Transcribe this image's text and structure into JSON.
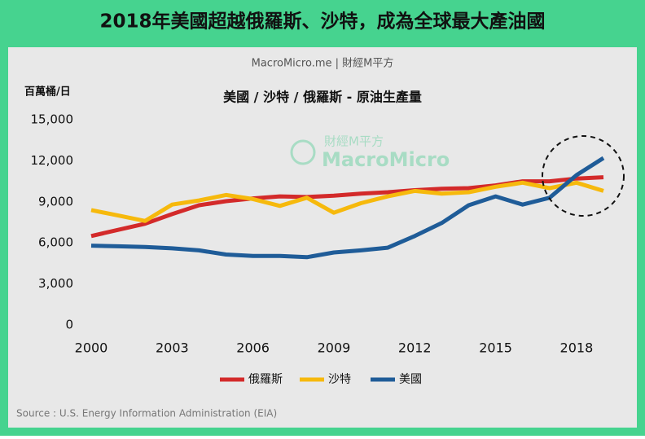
{
  "chart_data": {
    "type": "line",
    "title": "2018年美國超越俄羅斯、沙特，成為全球最大產油國",
    "site": "MacroMicro.me | 財經M平方",
    "subtitle": "美國 / 沙特 / 俄羅斯 - 原油生產量",
    "y_label": "百萬桶/日",
    "watermark": [
      "財經M平方",
      "MacroMicro"
    ],
    "source": "Source : U.S. Energy Information Administration (EIA)",
    "x": [
      2000,
      2001,
      2002,
      2003,
      2004,
      2005,
      2006,
      2007,
      2008,
      2009,
      2010,
      2011,
      2012,
      2013,
      2014,
      2015,
      2016,
      2017,
      2018,
      2019
    ],
    "xlim": [
      2000,
      2019
    ],
    "xticks": [
      2000,
      2003,
      2006,
      2009,
      2012,
      2015,
      2018
    ],
    "ylim": [
      0,
      15000
    ],
    "yticks": [
      0,
      {
        "value": 3000,
        "label": "3,000"
      },
      {
        "value": 6000,
        "label": "6,000"
      },
      {
        "value": 9000,
        "label": "9,000"
      },
      {
        "value": 12000,
        "label": "12,000"
      },
      {
        "value": 15000,
        "label": "15,000"
      }
    ],
    "series": [
      {
        "name": "俄羅斯",
        "color": "#d32a2a",
        "values": [
          6500,
          6950,
          7400,
          8100,
          8750,
          9050,
          9250,
          9400,
          9350,
          9450,
          9600,
          9700,
          9850,
          9950,
          10000,
          10200,
          10500,
          10500,
          10700,
          10800
        ]
      },
      {
        "name": "沙特",
        "color": "#f6b90c",
        "values": [
          8400,
          8000,
          7600,
          8800,
          9100,
          9500,
          9200,
          8700,
          9300,
          8200,
          8900,
          9400,
          9800,
          9600,
          9700,
          10100,
          10400,
          10000,
          10400,
          9800
        ]
      },
      {
        "name": "美國",
        "color": "#1f5c98",
        "values": [
          5800,
          5750,
          5700,
          5600,
          5450,
          5150,
          5050,
          5050,
          4950,
          5300,
          5450,
          5650,
          6500,
          7450,
          8750,
          9400,
          8800,
          9300,
          10950,
          12200
        ]
      }
    ]
  }
}
